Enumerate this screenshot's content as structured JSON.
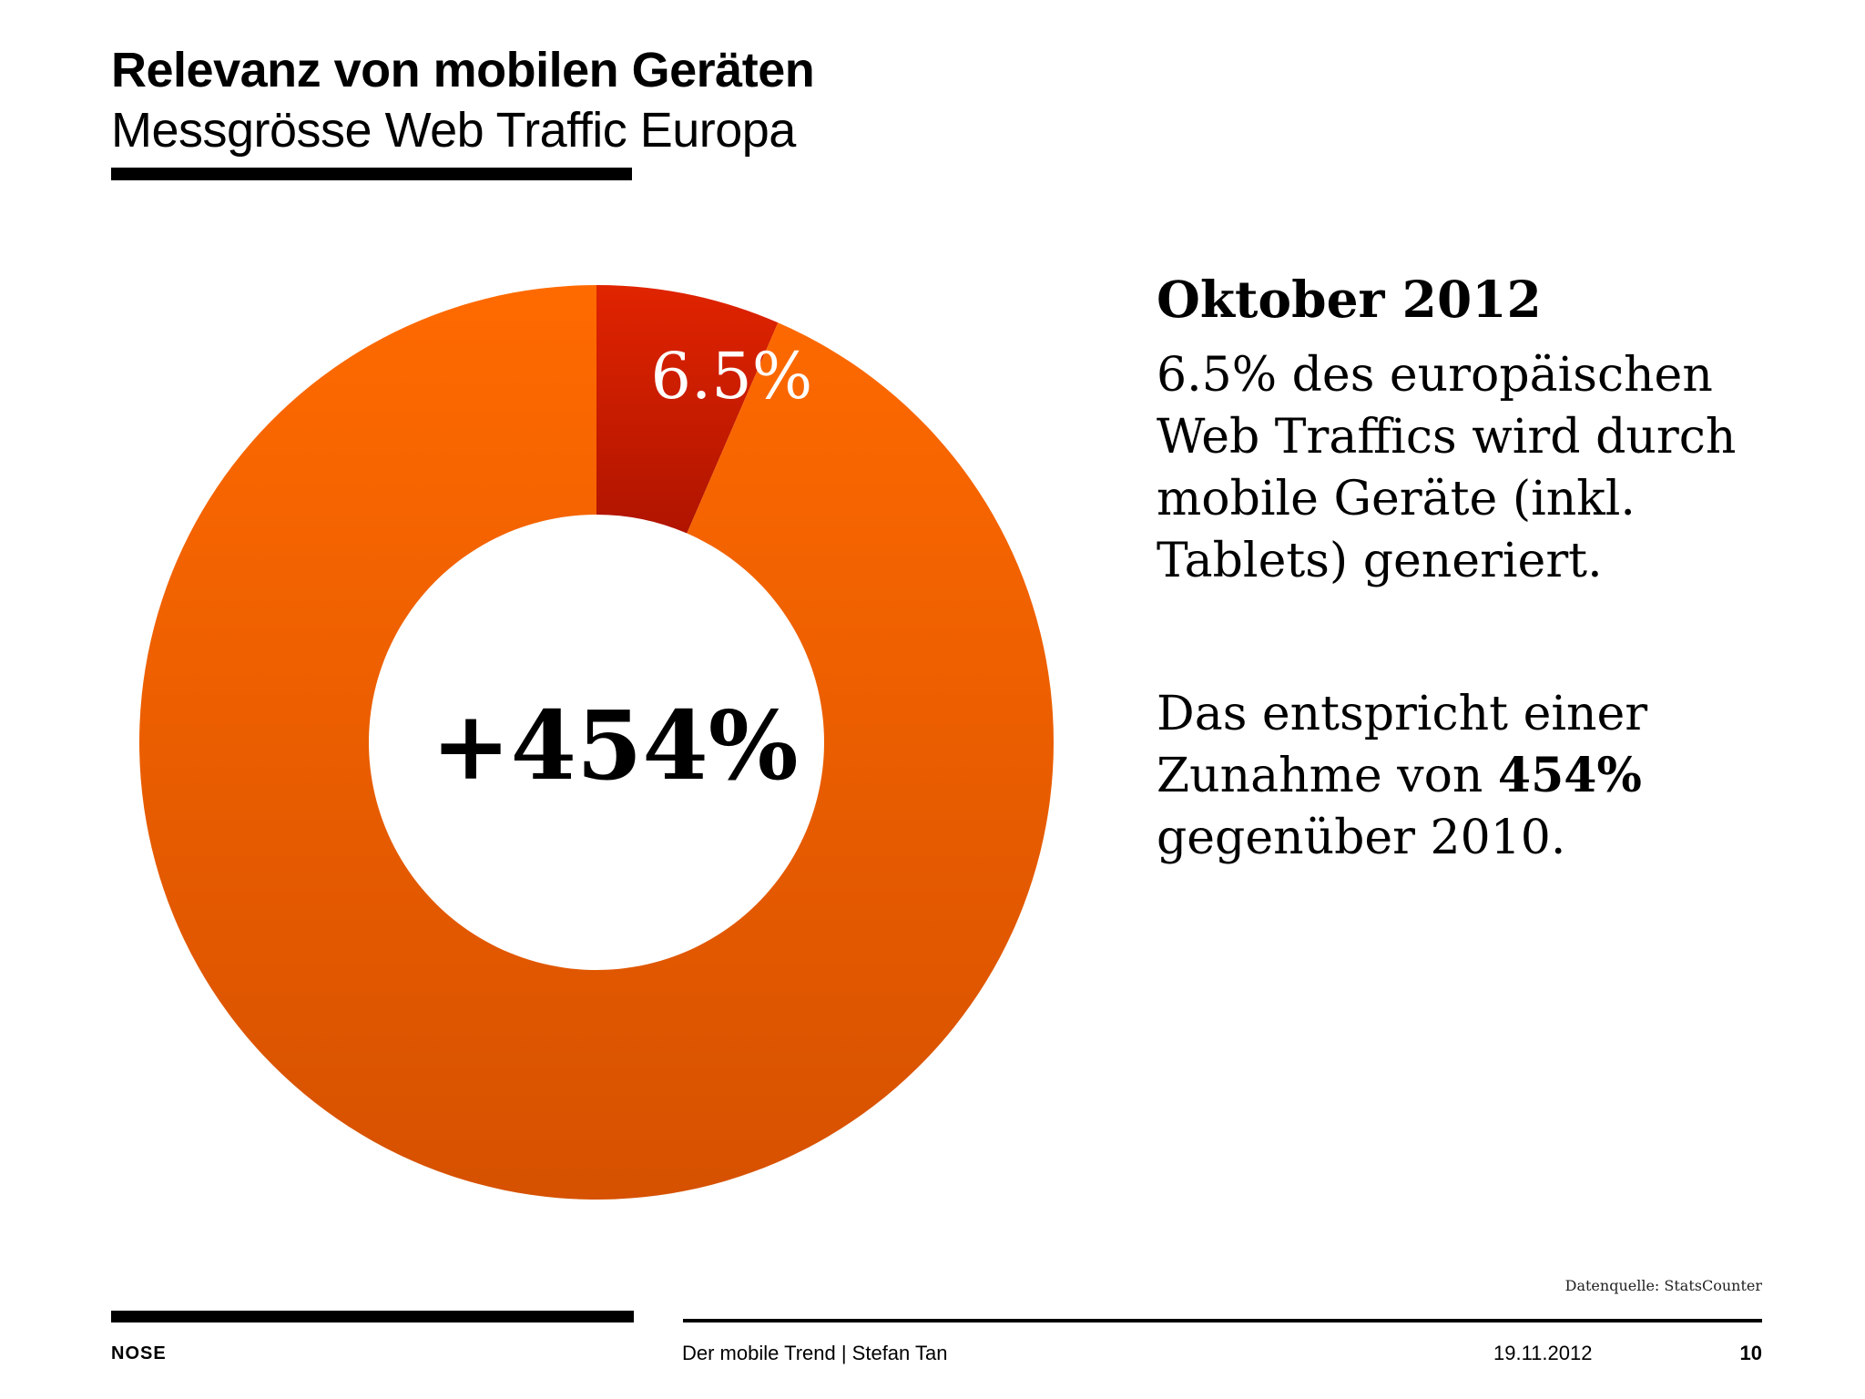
{
  "header": {
    "title": "Relevanz von mobilen Geräten",
    "subtitle": "Messgrösse Web Traffic Europa"
  },
  "chart_data": {
    "type": "pie",
    "variant": "donut",
    "slices": [
      {
        "label": "6.5%",
        "value": 6.5,
        "color": "#cc1f00"
      },
      {
        "label": "",
        "value": 93.5,
        "color": "#f06000"
      }
    ],
    "center_label": "+454%"
  },
  "side": {
    "heading": "Oktober 2012",
    "paragraph1": "6.5% des europäischen Web Traffics wird durch mobile Geräte (inkl. Tablets) generiert.",
    "paragraph2_prefix": "Das entspricht einer Zunahme von",
    "paragraph2_bold": "454%",
    "paragraph2_suffix": "gegenüber 2010."
  },
  "source": "Datenquelle: StatsCounter",
  "footer": {
    "logo": "NOSE",
    "center": "Der mobile Trend | Stefan Tan",
    "date": "19.11.2012",
    "page": "10"
  }
}
